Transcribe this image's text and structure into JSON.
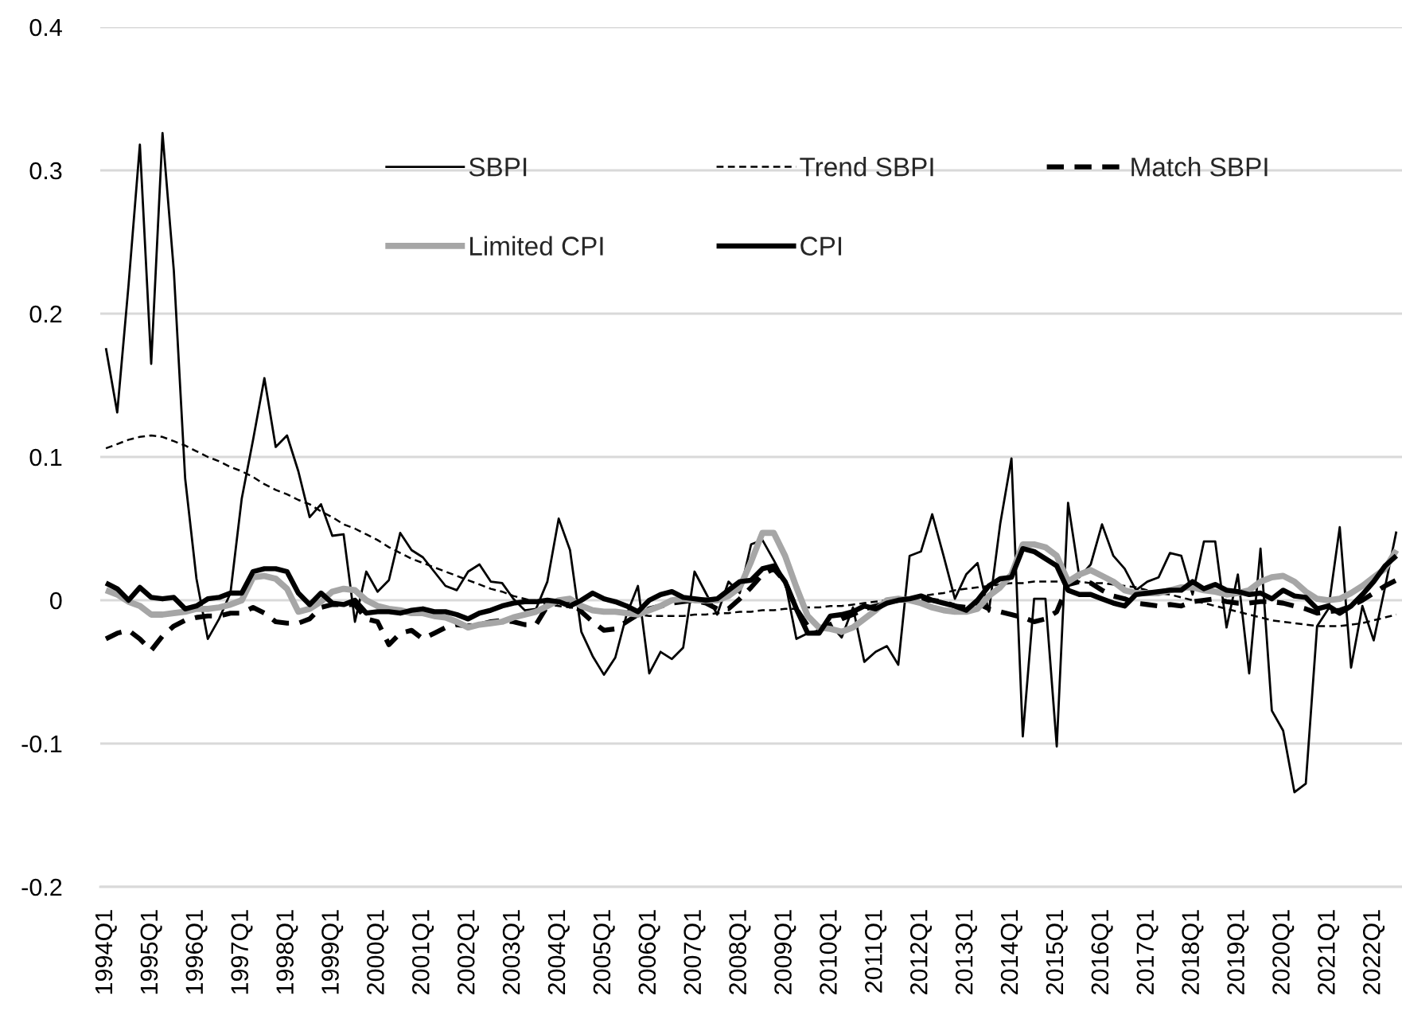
{
  "chart_data": {
    "type": "line",
    "categories": [
      "1994Q1",
      null,
      null,
      null,
      "1995Q1",
      null,
      null,
      null,
      "1996Q1",
      null,
      null,
      null,
      "1997Q1",
      null,
      null,
      null,
      "1998Q1",
      null,
      null,
      null,
      "1999Q1",
      null,
      null,
      null,
      "2000Q1",
      null,
      null,
      null,
      "2001Q1",
      null,
      null,
      null,
      "2002Q1",
      null,
      null,
      null,
      "2003Q1",
      null,
      null,
      null,
      "2004Q1",
      null,
      null,
      null,
      "2005Q1",
      null,
      null,
      null,
      "2006Q1",
      null,
      null,
      null,
      "2007Q1",
      null,
      null,
      null,
      "2008Q1",
      null,
      null,
      null,
      "2009Q1",
      null,
      null,
      null,
      "2010Q1",
      null,
      null,
      null,
      "2011Q1",
      null,
      null,
      null,
      "2012Q1",
      null,
      null,
      null,
      "2013Q1",
      null,
      null,
      null,
      "2014Q1",
      null,
      null,
      null,
      "2015Q1",
      null,
      null,
      null,
      "2016Q1",
      null,
      null,
      null,
      "2017Q1",
      null,
      null,
      null,
      "2018Q1",
      null,
      null,
      null,
      "2019Q1",
      null,
      null,
      null,
      "2020Q1",
      null,
      null,
      null,
      "2021Q1",
      null,
      null,
      null,
      "2022Q1",
      null,
      null
    ],
    "series": [
      {
        "name": "SBPI",
        "color": "#000000",
        "line_style": "solid",
        "values": [
          0.176,
          0.131,
          0.22,
          0.318,
          0.165,
          0.326,
          0.23,
          0.085,
          0.015,
          -0.027,
          -0.013,
          0.005,
          0.071,
          0.112,
          0.155,
          0.107,
          0.115,
          0.09,
          0.058,
          0.067,
          0.045,
          0.046,
          -0.015,
          0.02,
          0.006,
          0.014,
          0.047,
          0.035,
          0.03,
          0.02,
          0.01,
          0.007,
          0.02,
          0.025,
          0.013,
          0.012,
          0.001,
          -0.007,
          -0.006,
          0.013,
          0.057,
          0.035,
          -0.022,
          -0.039,
          -0.052,
          -0.04,
          -0.01,
          0.01,
          -0.051,
          -0.036,
          -0.041,
          -0.033,
          0.02,
          0.005,
          -0.01,
          0.013,
          0.005,
          0.039,
          0.042,
          0.028,
          0.013,
          -0.027,
          -0.023,
          -0.021,
          -0.017,
          -0.026,
          -0.005,
          -0.043,
          -0.036,
          -0.032,
          -0.045,
          0.031,
          0.034,
          0.06,
          0.031,
          0.001,
          0.018,
          0.026,
          -0.008,
          0.053,
          0.099,
          -0.095,
          0.001,
          0.001,
          -0.102,
          0.068,
          0.016,
          0.025,
          0.053,
          0.031,
          0.022,
          0.007,
          0.013,
          0.016,
          0.033,
          0.031,
          0.004,
          0.041,
          0.041,
          -0.019,
          0.018,
          -0.051,
          0.036,
          -0.077,
          -0.091,
          -0.134,
          -0.128,
          -0.018,
          -0.006,
          0.051,
          -0.047,
          -0.004,
          -0.028,
          0.009,
          0.048
        ]
      },
      {
        "name": "Trend SBPI",
        "color": "#000000",
        "line_style": "dashed",
        "values": [
          0.106,
          0.109,
          0.112,
          0.114,
          0.115,
          0.114,
          0.111,
          0.108,
          0.104,
          0.1,
          0.097,
          0.093,
          0.09,
          0.086,
          0.081,
          0.077,
          0.074,
          0.07,
          0.067,
          0.062,
          0.058,
          0.053,
          0.05,
          0.046,
          0.042,
          0.037,
          0.033,
          0.029,
          0.026,
          0.023,
          0.02,
          0.017,
          0.014,
          0.011,
          0.008,
          0.006,
          0.003,
          0.001,
          -0.001,
          -0.003,
          -0.004,
          -0.005,
          -0.006,
          -0.007,
          -0.008,
          -0.009,
          -0.01,
          -0.01,
          -0.011,
          -0.011,
          -0.011,
          -0.011,
          -0.01,
          -0.01,
          -0.009,
          -0.009,
          -0.008,
          -0.008,
          -0.007,
          -0.007,
          -0.006,
          -0.006,
          -0.005,
          -0.005,
          -0.004,
          -0.004,
          -0.003,
          -0.002,
          -0.001,
          0,
          0.001,
          0.002,
          0.003,
          0.004,
          0.005,
          0.007,
          0.008,
          0.009,
          0.01,
          0.011,
          0.012,
          0.012,
          0.013,
          0.013,
          0.013,
          0.013,
          0.013,
          0.012,
          0.012,
          0.011,
          0.01,
          0.009,
          0.007,
          0.005,
          0.004,
          0.002,
          0,
          -0.002,
          -0.004,
          -0.006,
          -0.008,
          -0.01,
          -0.012,
          -0.014,
          -0.015,
          -0.016,
          -0.017,
          -0.018,
          -0.018,
          -0.018,
          -0.017,
          -0.016,
          -0.014,
          -0.012,
          -0.01
        ]
      },
      {
        "name": "Match SBPI",
        "color": "#000000",
        "line_style": "dashed",
        "values": [
          -0.027,
          -0.023,
          -0.021,
          -0.027,
          -0.035,
          -0.025,
          -0.018,
          -0.014,
          -0.012,
          -0.011,
          -0.011,
          -0.009,
          -0.009,
          -0.005,
          -0.009,
          -0.015,
          -0.016,
          -0.016,
          -0.013,
          -0.005,
          -0.003,
          -0.003,
          -0.003,
          -0.013,
          -0.015,
          -0.031,
          -0.023,
          -0.021,
          -0.027,
          -0.023,
          -0.019,
          -0.017,
          -0.018,
          -0.017,
          -0.015,
          -0.014,
          -0.015,
          -0.017,
          -0.017,
          -0.004,
          -0.001,
          0,
          -0.008,
          -0.015,
          -0.021,
          -0.02,
          -0.015,
          -0.01,
          -0.006,
          -0.004,
          -0.002,
          -0.001,
          0,
          -0.002,
          -0.006,
          -0.006,
          0.001,
          0.009,
          0.018,
          0.022,
          0.013,
          -0.006,
          -0.018,
          -0.021,
          -0.017,
          -0.013,
          -0.01,
          -0.006,
          -0.004,
          -0.002,
          0,
          0,
          0,
          0,
          -0.001,
          -0.004,
          -0.005,
          -0.002,
          -0.006,
          -0.008,
          -0.01,
          -0.012,
          -0.015,
          -0.013,
          -0.008,
          0.011,
          0.013,
          0.012,
          0.007,
          0.003,
          0.001,
          -0.002,
          -0.003,
          -0.004,
          -0.003,
          -0.004,
          -0.001,
          0,
          0.001,
          -0.001,
          -0.002,
          -0.002,
          -0.001,
          -0.001,
          -0.002,
          -0.004,
          -0.006,
          -0.009,
          -0.008,
          -0.007,
          -0.004,
          0,
          0.005,
          0.01,
          0.014
        ]
      },
      {
        "name": "Limited CPI",
        "color": "#a6a6a6",
        "line_style": "solid",
        "values": [
          0.007,
          0.004,
          -0.001,
          -0.004,
          -0.01,
          -0.01,
          -0.009,
          -0.008,
          -0.006,
          -0.006,
          -0.005,
          -0.003,
          0,
          0.016,
          0.017,
          0.015,
          0.008,
          -0.008,
          -0.006,
          -0.001,
          0.006,
          0.008,
          0.007,
          0,
          -0.004,
          -0.006,
          -0.007,
          -0.009,
          -0.009,
          -0.011,
          -0.012,
          -0.015,
          -0.019,
          -0.017,
          -0.016,
          -0.015,
          -0.012,
          -0.01,
          -0.008,
          -0.004,
          0,
          0.001,
          -0.004,
          -0.007,
          -0.008,
          -0.008,
          -0.009,
          -0.01,
          -0.007,
          -0.004,
          0,
          0.001,
          0,
          0,
          0,
          0.003,
          0.009,
          0.027,
          0.047,
          0.047,
          0.031,
          0.009,
          -0.011,
          -0.019,
          -0.02,
          -0.022,
          -0.019,
          -0.013,
          -0.007,
          0,
          0.001,
          0,
          -0.002,
          -0.005,
          -0.007,
          -0.008,
          -0.008,
          -0.006,
          0.003,
          0.009,
          0.018,
          0.039,
          0.039,
          0.037,
          0.031,
          0.013,
          0.018,
          0.021,
          0.017,
          0.013,
          0.007,
          0.005,
          0.005,
          0.005,
          0.007,
          0.009,
          0.009,
          0.007,
          0.006,
          0.004,
          0.005,
          0.007,
          0.013,
          0.016,
          0.017,
          0.013,
          0.006,
          0.001,
          0,
          0.001,
          0.005,
          0.01,
          0.016,
          0.022,
          0.035
        ]
      },
      {
        "name": "CPI",
        "color": "#000000",
        "line_style": "solid",
        "values": [
          0.012,
          0.008,
          0,
          0.009,
          0.002,
          0.001,
          0.002,
          -0.006,
          -0.004,
          0.001,
          0.002,
          0.005,
          0.005,
          0.02,
          0.022,
          0.022,
          0.02,
          0.005,
          -0.003,
          0.005,
          -0.002,
          -0.003,
          0,
          -0.009,
          -0.008,
          -0.008,
          -0.009,
          -0.007,
          -0.006,
          -0.008,
          -0.008,
          -0.01,
          -0.013,
          -0.009,
          -0.007,
          -0.004,
          -0.002,
          -0.001,
          -0.001,
          0,
          -0.001,
          -0.004,
          0,
          0.005,
          0.001,
          -0.001,
          -0.004,
          -0.008,
          0,
          0.004,
          0.006,
          0.002,
          0.001,
          0,
          0.001,
          0.007,
          0.013,
          0.014,
          0.022,
          0.024,
          0.013,
          -0.006,
          -0.023,
          -0.023,
          -0.011,
          -0.01,
          -0.008,
          -0.004,
          -0.006,
          -0.002,
          0,
          0.001,
          0.003,
          0,
          -0.002,
          -0.004,
          -0.007,
          0,
          0.01,
          0.015,
          0.016,
          0.036,
          0.034,
          0.029,
          0.024,
          0.007,
          0.004,
          0.004,
          0.001,
          -0.002,
          -0.004,
          0.004,
          0.005,
          0.006,
          0.007,
          0.007,
          0.013,
          0.008,
          0.011,
          0.007,
          0.006,
          0.004,
          0.005,
          0.001,
          0.007,
          0.003,
          0.002,
          -0.006,
          -0.004,
          -0.009,
          -0.004,
          0.004,
          0.013,
          0.024,
          0.031
        ]
      }
    ],
    "ylim": [
      -0.2,
      0.4
    ],
    "yticks": [
      -0.2,
      -0.1,
      0,
      0.1,
      0.2,
      0.3,
      0.4
    ],
    "grid": "y",
    "legend": "top",
    "marker": "none"
  }
}
